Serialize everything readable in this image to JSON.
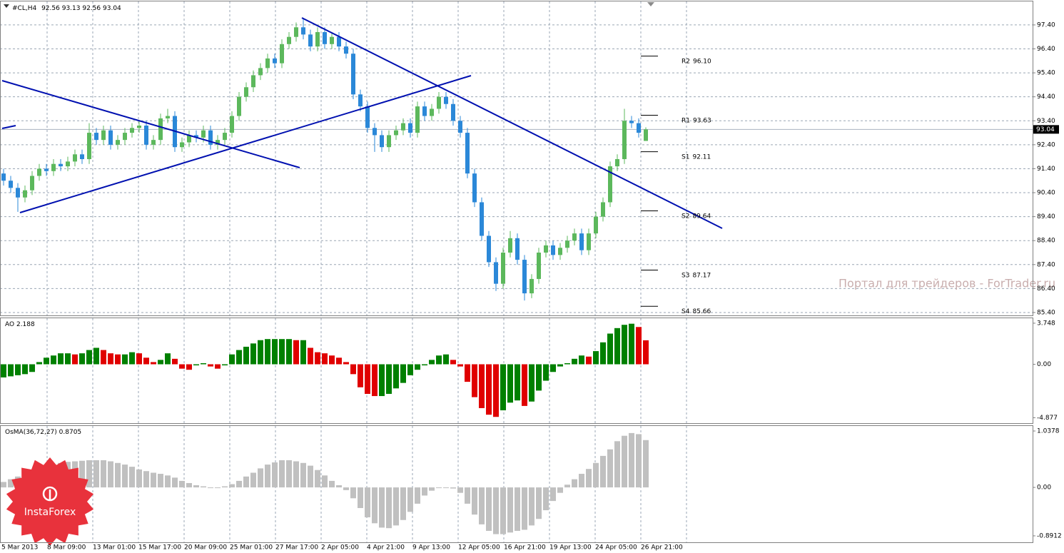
{
  "chart_data": [
    {
      "type": "candlestick",
      "title": "#CL,H4",
      "up_color": "#5cb85c",
      "down_color": "#2b88d8",
      "ylim": [
        85.28,
        98.38
      ],
      "yticks": [
        {
          "value": 97.4,
          "label": "97.40"
        },
        {
          "value": 96.4,
          "label": "96.40"
        },
        {
          "value": 95.4,
          "label": "95.40"
        },
        {
          "value": 94.4,
          "label": "94.40"
        },
        {
          "value": 93.4,
          "label": "93.40"
        },
        {
          "value": 92.4,
          "label": "92.40"
        },
        {
          "value": 91.4,
          "label": "91.40"
        },
        {
          "value": 90.4,
          "label": "90.40"
        },
        {
          "value": 89.4,
          "label": "89.40"
        },
        {
          "value": 88.4,
          "label": "88.40"
        },
        {
          "value": 87.4,
          "label": "87.40"
        },
        {
          "value": 86.4,
          "label": "86.40"
        },
        {
          "value": 85.4,
          "label": "85.40"
        }
      ],
      "grid": true,
      "x_labels": [
        "5 Mar 2013",
        "8 Mar 09:00",
        "13 Mar 01:00",
        "15 Mar 17:00",
        "20 Mar 09:00",
        "25 Mar 01:00",
        "27 Mar 17:00",
        "2 Apr 05:00",
        "4 Apr 21:00",
        "9 Apr 13:00",
        "12 Apr 05:00",
        "16 Apr 21:00",
        "19 Apr 13:00",
        "24 Apr 05:00",
        "26 Apr 21:00"
      ],
      "pivots": [
        {
          "name": "R2",
          "value": 96.1,
          "label": "96.10"
        },
        {
          "name": "R1",
          "value": 93.63,
          "label": "93.63"
        },
        {
          "name": "S1",
          "value": 92.11,
          "label": "92.11"
        },
        {
          "name": "S2",
          "value": 89.64,
          "label": "89.64"
        },
        {
          "name": "S3",
          "value": 87.17,
          "label": "87.17"
        },
        {
          "name": "S4",
          "value": 85.66,
          "label": "85.66"
        }
      ],
      "ohlc": [
        [
          91.2,
          91.4,
          90.7,
          90.9
        ],
        [
          90.9,
          91.1,
          90.4,
          90.6
        ],
        [
          90.6,
          90.8,
          89.6,
          90.2
        ],
        [
          90.2,
          90.7,
          90.0,
          90.5
        ],
        [
          90.5,
          91.3,
          90.3,
          91.1
        ],
        [
          91.1,
          91.6,
          90.9,
          91.4
        ],
        [
          91.4,
          91.6,
          91.1,
          91.3
        ],
        [
          91.3,
          91.8,
          91.1,
          91.6
        ],
        [
          91.6,
          91.8,
          91.3,
          91.5
        ],
        [
          91.5,
          91.9,
          91.3,
          91.7
        ],
        [
          91.7,
          92.2,
          91.5,
          92.0
        ],
        [
          92.0,
          92.2,
          91.6,
          91.8
        ],
        [
          91.8,
          93.3,
          91.6,
          92.9
        ],
        [
          92.9,
          93.1,
          92.4,
          92.6
        ],
        [
          92.6,
          93.2,
          92.4,
          93.0
        ],
        [
          93.0,
          93.2,
          92.2,
          92.4
        ],
        [
          92.4,
          92.8,
          92.2,
          92.6
        ],
        [
          92.6,
          93.1,
          92.4,
          92.9
        ],
        [
          92.9,
          93.3,
          92.7,
          93.1
        ],
        [
          93.1,
          93.4,
          92.9,
          93.2
        ],
        [
          93.2,
          93.4,
          92.2,
          92.4
        ],
        [
          92.4,
          92.8,
          92.2,
          92.6
        ],
        [
          92.6,
          93.7,
          92.4,
          93.5
        ],
        [
          93.5,
          93.9,
          93.3,
          93.6
        ],
        [
          93.6,
          93.8,
          92.1,
          92.3
        ],
        [
          92.3,
          92.7,
          92.1,
          92.5
        ],
        [
          92.5,
          93.0,
          92.3,
          92.8
        ],
        [
          92.8,
          93.0,
          92.5,
          92.7
        ],
        [
          92.7,
          93.2,
          92.5,
          93.0
        ],
        [
          93.0,
          93.2,
          92.2,
          92.4
        ],
        [
          92.4,
          92.8,
          92.2,
          92.6
        ],
        [
          92.6,
          93.1,
          92.4,
          92.9
        ],
        [
          92.9,
          93.8,
          92.7,
          93.6
        ],
        [
          93.6,
          94.6,
          93.4,
          94.4
        ],
        [
          94.4,
          95.0,
          94.2,
          94.8
        ],
        [
          94.8,
          95.5,
          94.6,
          95.3
        ],
        [
          95.3,
          95.8,
          95.1,
          95.6
        ],
        [
          95.6,
          96.2,
          95.4,
          96.0
        ],
        [
          96.0,
          96.2,
          95.6,
          95.8
        ],
        [
          95.8,
          96.8,
          95.6,
          96.6
        ],
        [
          96.6,
          97.1,
          96.4,
          96.9
        ],
        [
          96.9,
          97.5,
          96.7,
          97.3
        ],
        [
          97.3,
          97.7,
          96.8,
          97.0
        ],
        [
          97.0,
          97.2,
          96.3,
          96.5
        ],
        [
          96.5,
          97.3,
          96.3,
          97.1
        ],
        [
          97.1,
          97.3,
          96.4,
          96.6
        ],
        [
          96.6,
          97.1,
          96.4,
          96.9
        ],
        [
          96.9,
          97.1,
          96.3,
          96.5
        ],
        [
          96.5,
          96.7,
          96.0,
          96.2
        ],
        [
          96.2,
          96.4,
          94.3,
          94.5
        ],
        [
          94.5,
          94.7,
          93.8,
          94.0
        ],
        [
          94.0,
          94.2,
          92.9,
          93.1
        ],
        [
          93.1,
          93.3,
          92.1,
          92.8
        ],
        [
          92.8,
          93.0,
          92.1,
          92.3
        ],
        [
          92.3,
          93.0,
          92.1,
          92.8
        ],
        [
          92.8,
          93.2,
          92.6,
          93.0
        ],
        [
          93.0,
          93.5,
          92.8,
          93.3
        ],
        [
          93.3,
          93.5,
          92.7,
          92.9
        ],
        [
          92.9,
          94.2,
          92.7,
          94.0
        ],
        [
          94.0,
          94.2,
          93.4,
          93.6
        ],
        [
          93.6,
          94.1,
          93.4,
          93.9
        ],
        [
          93.9,
          94.6,
          93.7,
          94.4
        ],
        [
          94.4,
          94.6,
          93.9,
          94.1
        ],
        [
          94.1,
          94.3,
          93.2,
          93.4
        ],
        [
          93.4,
          93.6,
          92.7,
          92.9
        ],
        [
          92.9,
          93.1,
          91.0,
          91.2
        ],
        [
          91.2,
          91.4,
          89.8,
          90.0
        ],
        [
          90.0,
          90.2,
          88.4,
          88.6
        ],
        [
          88.6,
          88.8,
          87.3,
          87.5
        ],
        [
          87.5,
          87.7,
          86.3,
          86.6
        ],
        [
          86.6,
          88.1,
          86.4,
          87.9
        ],
        [
          87.9,
          88.8,
          87.7,
          88.5
        ],
        [
          88.5,
          88.7,
          87.4,
          87.6
        ],
        [
          87.6,
          87.8,
          85.9,
          86.2
        ],
        [
          86.2,
          87.0,
          86.0,
          86.8
        ],
        [
          86.8,
          88.1,
          86.6,
          87.9
        ],
        [
          87.9,
          88.4,
          87.7,
          88.2
        ],
        [
          88.2,
          88.4,
          87.6,
          87.8
        ],
        [
          87.8,
          88.3,
          87.6,
          88.1
        ],
        [
          88.1,
          88.6,
          87.9,
          88.4
        ],
        [
          88.4,
          88.9,
          88.2,
          88.7
        ],
        [
          88.7,
          88.9,
          87.8,
          88.0
        ],
        [
          88.0,
          88.9,
          87.8,
          88.7
        ],
        [
          88.7,
          89.6,
          88.5,
          89.4
        ],
        [
          89.4,
          90.2,
          89.2,
          90.0
        ],
        [
          90.0,
          91.7,
          89.8,
          91.5
        ],
        [
          91.5,
          92.0,
          91.3,
          91.8
        ],
        [
          91.8,
          93.9,
          91.6,
          93.4
        ],
        [
          93.4,
          93.6,
          93.1,
          93.3
        ],
        [
          93.3,
          93.5,
          92.7,
          92.9
        ],
        [
          92.56,
          93.13,
          92.56,
          93.04
        ]
      ],
      "watermark": "Портал для трейдеров - ForTrader.ru",
      "logo": "InstaForex"
    },
    {
      "type": "histogram",
      "title": "AO",
      "up_color": "#008000",
      "down_color": "#e00000",
      "ylim": [
        -5.37,
        4.2
      ],
      "yticks": [
        3.748,
        {
          "value": 0,
          "label": "0.00"
        },
        -4.877
      ],
      "values": [
        -1.2,
        -1.1,
        -1.0,
        -0.9,
        -0.7,
        0.2,
        0.6,
        0.8,
        1.0,
        1.0,
        0.9,
        1.0,
        1.3,
        1.5,
        1.3,
        1.0,
        0.9,
        0.9,
        1.1,
        1.0,
        0.6,
        0.2,
        0.4,
        1.0,
        0.5,
        -0.4,
        -0.5,
        -0.1,
        0.1,
        -0.2,
        -0.4,
        -0.1,
        0.9,
        1.3,
        1.6,
        1.9,
        2.2,
        2.3,
        2.3,
        2.3,
        2.3,
        2.2,
        2.2,
        1.5,
        1.1,
        1.0,
        0.8,
        0.6,
        0.2,
        -0.9,
        -2.1,
        -2.7,
        -2.9,
        -2.9,
        -2.7,
        -2.2,
        -1.7,
        -1.0,
        -0.5,
        -0.1,
        0.4,
        0.8,
        0.9,
        0.4,
        -0.2,
        -1.6,
        -3.0,
        -4.0,
        -4.6,
        -4.8,
        -4.2,
        -3.5,
        -3.3,
        -3.8,
        -3.4,
        -2.4,
        -1.5,
        -0.7,
        -0.2,
        0.1,
        0.5,
        0.8,
        0.7,
        1.2,
        2.0,
        2.8,
        3.3,
        3.6,
        3.7,
        3.4,
        2.188
      ]
    },
    {
      "type": "histogram",
      "title": "OsMA(36,72,27)",
      "color": "#c0c0c0",
      "ylim": [
        -1.01,
        1.13
      ],
      "yticks": [
        1.0378,
        {
          "value": 0,
          "label": "0.00"
        },
        -0.8912
      ],
      "values": [
        0.1,
        0.15,
        0.2,
        0.25,
        0.3,
        0.35,
        0.4,
        0.42,
        0.45,
        0.47,
        0.48,
        0.49,
        0.5,
        0.5,
        0.5,
        0.48,
        0.45,
        0.42,
        0.38,
        0.33,
        0.3,
        0.27,
        0.25,
        0.22,
        0.18,
        0.12,
        0.08,
        0.04,
        0.02,
        0.0,
        0.0,
        0.02,
        0.06,
        0.12,
        0.2,
        0.27,
        0.35,
        0.42,
        0.46,
        0.5,
        0.5,
        0.48,
        0.45,
        0.4,
        0.32,
        0.22,
        0.12,
        0.04,
        -0.05,
        -0.2,
        -0.38,
        -0.55,
        -0.66,
        -0.74,
        -0.75,
        -0.7,
        -0.6,
        -0.45,
        -0.3,
        -0.15,
        -0.06,
        0.0,
        0.0,
        -0.02,
        -0.1,
        -0.3,
        -0.5,
        -0.68,
        -0.8,
        -0.86,
        -0.86,
        -0.83,
        -0.8,
        -0.78,
        -0.7,
        -0.58,
        -0.42,
        -0.25,
        -0.1,
        0.05,
        0.15,
        0.25,
        0.34,
        0.45,
        0.58,
        0.7,
        0.85,
        0.95,
        1.0,
        0.98,
        0.8705
      ]
    }
  ]
}
